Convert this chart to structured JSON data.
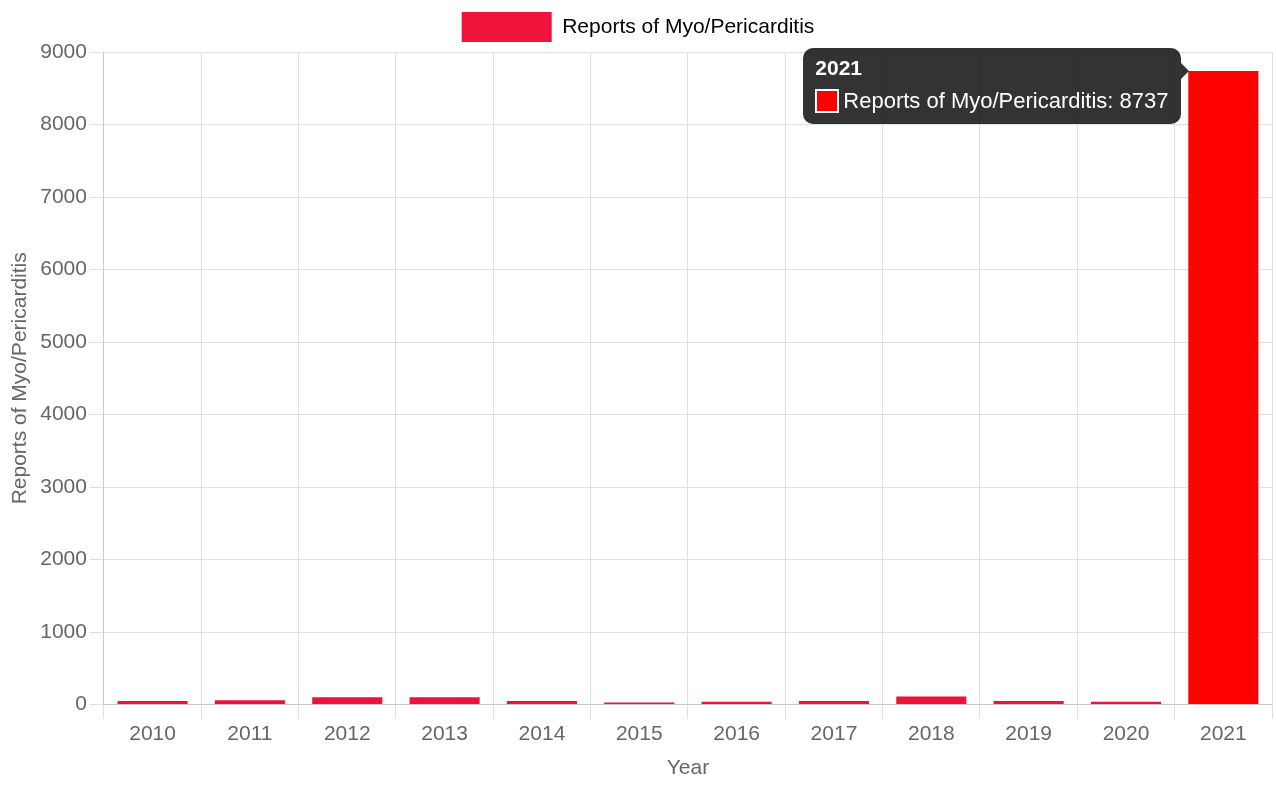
{
  "chart_data": {
    "type": "bar",
    "xlabel": "Year",
    "ylabel": "Reports of Myo/Pericarditis",
    "categories": [
      "2010",
      "2011",
      "2012",
      "2013",
      "2014",
      "2015",
      "2016",
      "2017",
      "2018",
      "2019",
      "2020",
      "2021"
    ],
    "series": [
      {
        "name": "Reports of Myo/Pericarditis",
        "color": "#f0143c",
        "colors": [
          "#e8143c",
          "#e8143c",
          "#e8143c",
          "#e8143c",
          "#e8143c",
          "#e8143c",
          "#e8143c",
          "#e8143c",
          "#e8143c",
          "#e8143c",
          "#e8143c",
          "#ff0000"
        ],
        "values": [
          50,
          60,
          100,
          100,
          50,
          30,
          40,
          50,
          110,
          50,
          40,
          8737
        ]
      }
    ],
    "ylim": [
      0,
      9000
    ],
    "yticks": [
      0,
      1000,
      2000,
      3000,
      4000,
      5000,
      6000,
      7000,
      8000,
      9000
    ],
    "grid": true,
    "legend": "top",
    "annotations": [
      "2021",
      "Reports of Myo/Pericarditis: 8737"
    ]
  }
}
